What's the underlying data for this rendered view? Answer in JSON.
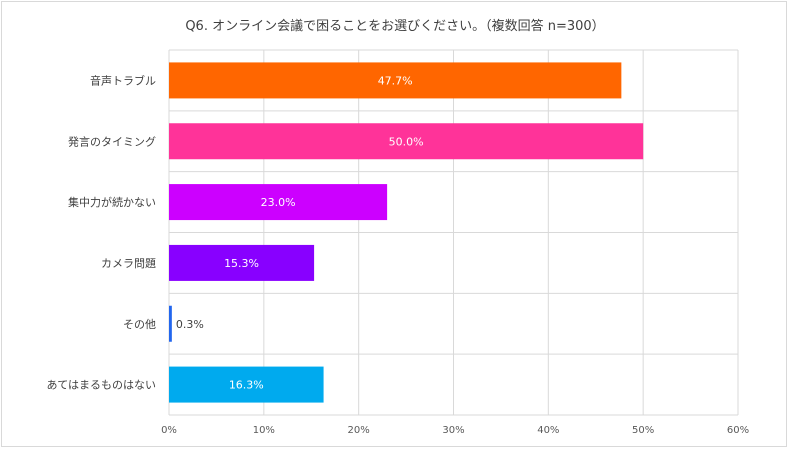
{
  "chart_data": {
    "type": "bar",
    "orientation": "horizontal",
    "title": "Q6. オンライン会議で困ることをお選びください。（複数回答 n=300）",
    "categories": [
      "音声トラブル",
      "発言のタイミング",
      "集中力が続かない",
      "カメラ問題",
      "その他",
      "あてはまるものはない"
    ],
    "values": [
      47.7,
      50.0,
      23.0,
      15.3,
      0.3,
      16.3
    ],
    "value_labels": [
      "47.7%",
      "50.0%",
      "23.0%",
      "15.3%",
      "0.3%",
      "16.3%"
    ],
    "bar_colors": [
      "#ff6600",
      "#ff3399",
      "#cc00ff",
      "#8800ff",
      "#2266ee",
      "#00aaee"
    ],
    "xlim": [
      0,
      60
    ],
    "xticks": [
      0,
      10,
      20,
      30,
      40,
      50,
      60
    ],
    "xtick_labels": [
      "0%",
      "10%",
      "20%",
      "30%",
      "40%",
      "50%",
      "60%"
    ],
    "xlabel": "",
    "ylabel": "",
    "grid": true,
    "legend": "none"
  }
}
